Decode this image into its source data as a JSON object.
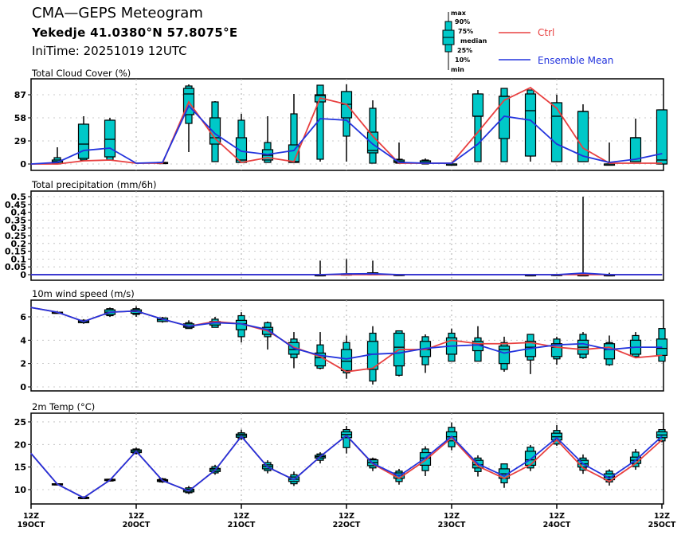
{
  "header": {
    "title": "CMA—GEPS Meteogram",
    "location": "Yekedje 41.0380°N 57.8075°E",
    "initime": "IniTime: 20251019 12UTC"
  },
  "legend": {
    "box_labels": [
      "max",
      "90%",
      "75%",
      "median",
      "25%",
      "10%",
      "min"
    ],
    "ctrl_label": "Ctrl",
    "mean_label": "Ensemble Mean",
    "ctrl_color": "#e84040",
    "mean_color": "#2233dd",
    "box_color": "#00c8c8"
  },
  "chart_data": [
    {
      "type": "boxplot-line",
      "title": "Total Cloud Cover (%)",
      "ylim": [
        -3,
        106
      ],
      "yticks": [
        0,
        29,
        58,
        87
      ],
      "ytick_labels": [
        "0",
        "29",
        "58",
        "87"
      ],
      "ctrl": [
        0,
        0,
        4,
        5,
        1,
        1,
        78,
        32,
        2,
        8,
        3,
        83,
        75,
        35,
        1,
        1,
        1,
        40,
        80,
        96,
        70,
        20,
        1,
        1,
        1
      ],
      "mean": [
        0,
        2,
        17,
        20,
        1,
        2,
        73,
        38,
        16,
        12,
        17,
        57,
        55,
        25,
        2,
        1,
        1,
        25,
        60,
        55,
        25,
        10,
        2,
        6,
        13
      ],
      "boxes": [
        null,
        [
          0,
          0,
          1,
          3,
          5,
          8,
          21
        ],
        [
          4,
          5,
          7,
          25,
          50,
          50,
          60
        ],
        [
          5,
          5,
          9,
          31,
          55,
          55,
          58
        ],
        null,
        [
          1,
          1,
          1,
          1,
          2,
          2,
          2
        ],
        [
          15,
          51,
          62,
          88,
          95,
          98,
          100
        ],
        [
          3,
          3,
          25,
          33,
          58,
          78,
          79
        ],
        [
          2,
          2,
          2,
          5,
          33,
          55,
          63
        ],
        [
          2,
          2,
          5,
          11,
          18,
          27,
          60
        ],
        [
          2,
          2,
          2,
          3,
          24,
          63,
          88
        ],
        [
          3,
          6,
          78,
          86,
          87,
          99,
          99
        ],
        [
          3,
          35,
          58,
          75,
          91,
          91,
          100
        ],
        [
          1,
          1,
          14,
          17,
          40,
          70,
          80
        ],
        [
          0,
          1,
          2,
          3,
          5,
          6,
          27
        ],
        [
          0,
          0,
          1,
          2,
          4,
          5,
          7
        ],
        [
          0,
          0,
          0,
          0,
          0,
          0,
          0
        ],
        [
          3,
          3,
          60,
          60,
          88,
          88,
          93
        ],
        [
          3,
          3,
          32,
          85,
          85,
          95,
          95
        ],
        [
          3,
          10,
          10,
          67,
          88,
          93,
          93
        ],
        [
          3,
          3,
          3,
          60,
          77,
          77,
          87
        ],
        [
          3,
          3,
          3,
          66,
          66,
          66,
          75
        ],
        [
          0,
          0,
          0,
          0,
          0,
          0,
          27
        ],
        [
          3,
          3,
          3,
          33,
          33,
          33,
          57
        ],
        [
          0,
          0,
          0,
          5,
          68,
          68,
          68
        ]
      ]
    },
    {
      "type": "boxplot-line",
      "title": "Total precipitation (mm/6h)",
      "ylim": [
        -0.02,
        0.52
      ],
      "yticks": [
        0,
        0.05,
        0.1,
        0.15,
        0.2,
        0.25,
        0.3,
        0.35,
        0.4,
        0.45,
        0.5
      ],
      "ytick_labels": [
        "0",
        "0.05",
        "0.1",
        "0.15",
        "0.2",
        "0.25",
        "0.3",
        "0.35",
        "0.4",
        "0.45",
        "0.5"
      ],
      "ctrl": [
        0,
        0,
        0,
        0,
        0,
        0,
        0,
        0,
        0,
        0,
        0,
        0,
        0,
        0,
        0,
        0,
        0,
        0,
        0,
        0,
        0,
        0,
        0,
        0,
        0
      ],
      "mean": [
        0,
        0,
        0,
        0,
        0,
        0,
        0,
        0,
        0,
        0,
        0,
        0,
        0.005,
        0.006,
        0,
        0,
        0,
        0,
        0,
        0,
        0,
        0.01,
        0,
        0,
        0
      ],
      "boxes": [
        null,
        null,
        null,
        null,
        null,
        null,
        null,
        null,
        null,
        null,
        null,
        [
          0,
          0,
          0,
          0,
          0,
          0,
          0.09
        ],
        [
          0,
          0,
          0,
          0,
          0.005,
          0.005,
          0.1
        ],
        [
          0,
          0,
          0,
          0,
          0.012,
          0.012,
          0.09
        ],
        [
          0,
          0,
          0,
          0,
          0.002,
          0.002,
          0.002
        ],
        null,
        null,
        null,
        null,
        [
          0,
          0,
          0,
          0,
          0,
          0,
          0.004
        ],
        [
          0,
          0,
          0,
          0,
          0.002,
          0.002,
          0.002
        ],
        [
          0,
          0,
          0,
          0,
          0,
          0,
          0.5
        ],
        [
          0,
          0,
          0,
          0,
          0,
          0,
          0.012
        ],
        null,
        null
      ]
    },
    {
      "type": "boxplot-line",
      "title": "10m wind speed (m/s)",
      "ylim": [
        -0.3,
        7.3
      ],
      "yticks": [
        0,
        2,
        4,
        6
      ],
      "ytick_labels": [
        "0",
        "2",
        "4",
        "6"
      ],
      "ctrl": [
        6.8,
        6.4,
        5.6,
        6.4,
        6.5,
        5.8,
        5.2,
        5.6,
        5.4,
        4.8,
        3.4,
        2.6,
        1.3,
        1.6,
        3.2,
        3.2,
        4.0,
        3.7,
        3.7,
        3.8,
        3.4,
        3.2,
        3.4,
        2.5,
        2.7
      ],
      "mean": [
        6.8,
        6.4,
        5.6,
        6.4,
        6.5,
        5.8,
        5.2,
        5.5,
        5.4,
        4.9,
        3.3,
        2.7,
        2.4,
        2.8,
        2.9,
        3.3,
        3.5,
        3.6,
        2.9,
        3.3,
        3.6,
        3.7,
        3.2,
        3.4,
        3.4
      ],
      "boxes": [
        null,
        [
          6.3,
          6.3,
          6.3,
          6.35,
          6.4,
          6.4,
          6.5
        ],
        [
          5.4,
          5.5,
          5.5,
          5.6,
          5.7,
          5.7,
          5.8
        ],
        [
          6.0,
          6.1,
          6.2,
          6.4,
          6.6,
          6.7,
          6.8
        ],
        [
          6.0,
          6.2,
          6.3,
          6.45,
          6.6,
          6.7,
          6.9
        ],
        [
          5.5,
          5.6,
          5.6,
          5.75,
          5.9,
          5.9,
          6.0
        ],
        [
          5.0,
          5.0,
          5.1,
          5.2,
          5.4,
          5.5,
          5.7
        ],
        [
          5.1,
          5.1,
          5.3,
          5.5,
          5.6,
          5.8,
          6.0
        ],
        [
          3.8,
          4.3,
          4.9,
          5.4,
          5.7,
          6.1,
          6.4
        ],
        [
          3.2,
          4.3,
          4.5,
          4.9,
          5.1,
          5.5,
          5.6
        ],
        [
          1.6,
          2.5,
          2.8,
          3.2,
          3.8,
          4.1,
          4.7
        ],
        [
          1.5,
          1.6,
          1.8,
          2.5,
          2.9,
          3.6,
          4.7
        ],
        [
          0.7,
          1.2,
          1.4,
          2.2,
          3.2,
          3.8,
          4.4
        ],
        [
          0.2,
          0.5,
          1.5,
          2.8,
          3.9,
          4.6,
          5.2
        ],
        [
          0.9,
          1.0,
          1.8,
          3.4,
          4.6,
          4.8,
          4.8
        ],
        [
          1.2,
          1.9,
          2.6,
          3.2,
          3.9,
          4.3,
          4.5
        ],
        [
          2.2,
          2.2,
          2.8,
          3.5,
          4.2,
          4.6,
          5.0
        ],
        [
          2.2,
          2.2,
          3.1,
          3.6,
          3.9,
          4.2,
          5.2
        ],
        [
          1.3,
          1.5,
          2.0,
          3.2,
          3.5,
          3.8,
          4.3
        ],
        [
          1.1,
          2.3,
          2.6,
          3.4,
          3.9,
          4.5,
          4.5
        ],
        [
          1.9,
          2.4,
          2.6,
          3.4,
          3.7,
          4.1,
          4.3
        ],
        [
          2.4,
          2.5,
          2.8,
          3.4,
          4.0,
          4.5,
          4.7
        ],
        [
          1.8,
          1.9,
          2.4,
          3.2,
          3.7,
          3.8,
          4.4
        ],
        [
          2.5,
          2.6,
          2.8,
          3.4,
          4.0,
          4.4,
          4.7
        ],
        [
          2.2,
          2.2,
          2.7,
          3.3,
          4.1,
          5.0,
          5.0
        ]
      ]
    },
    {
      "type": "boxplot-line",
      "title": "2m Temp (°C)",
      "ylim": [
        6.3,
        27
      ],
      "yticks": [
        10,
        15,
        20,
        25
      ],
      "ytick_labels": [
        "10",
        "15",
        "20",
        "25"
      ],
      "ctrl": [
        18,
        11.2,
        8.2,
        12.1,
        18.5,
        12,
        9.7,
        14.3,
        21.8,
        15,
        12.2,
        17.3,
        22,
        15.7,
        12.5,
        16.5,
        21.5,
        15.2,
        12.5,
        15.5,
        21,
        14.8,
        11.8,
        15.8,
        21
      ],
      "mean": [
        18,
        11.2,
        8.2,
        12.1,
        18.5,
        12,
        9.7,
        14.3,
        21.8,
        15,
        12.2,
        17.3,
        22,
        15.8,
        13,
        17,
        21.8,
        15.7,
        13,
        16.7,
        21.5,
        15.7,
        12.5,
        16.5,
        21.8
      ],
      "boxes": [
        null,
        [
          11.1,
          11.1,
          11.1,
          11.2,
          11.3,
          11.3,
          11.3
        ],
        [
          8.0,
          8.0,
          8.1,
          8.2,
          8.3,
          8.4,
          8.4
        ],
        [
          11.8,
          11.9,
          12,
          12.1,
          12.3,
          12.3,
          12.4
        ],
        [
          17.8,
          18,
          18.2,
          18.5,
          18.8,
          19,
          19.3
        ],
        [
          11.5,
          11.7,
          11.8,
          12,
          12.2,
          12.4,
          12.6
        ],
        [
          9.0,
          9.3,
          9.5,
          9.8,
          10.1,
          10.4,
          10.8
        ],
        [
          13.3,
          13.7,
          14,
          14.4,
          14.7,
          15.1,
          15.5
        ],
        [
          21,
          21.3,
          21.6,
          22,
          22.3,
          22.6,
          23.3
        ],
        [
          13.6,
          14.2,
          14.6,
          15.1,
          15.5,
          16,
          16.5
        ],
        [
          10.8,
          11.3,
          11.8,
          12.3,
          12.8,
          13.3,
          14
        ],
        [
          15.8,
          16.5,
          17,
          17.3,
          17.6,
          17.9,
          18.3
        ],
        [
          18,
          19.3,
          21.5,
          22.2,
          22.8,
          23.3,
          24.1
        ],
        [
          14.1,
          14.8,
          15.3,
          16,
          16.6,
          16.8,
          17.1
        ],
        [
          11.1,
          11.8,
          12.5,
          13.2,
          13.7,
          14.1,
          14.6
        ],
        [
          13,
          14.2,
          15.4,
          17,
          18.2,
          19,
          19.6
        ],
        [
          18.7,
          19.5,
          20.8,
          21.7,
          22.8,
          23.8,
          24.9
        ],
        [
          12.9,
          14,
          14.8,
          15.5,
          16.5,
          17,
          17.6
        ],
        [
          10.4,
          11.5,
          12.5,
          13.5,
          14.6,
          15.7,
          15.7
        ],
        [
          14.1,
          14.8,
          15.4,
          16.6,
          18.5,
          19.4,
          19.9
        ],
        [
          19.7,
          20.1,
          21,
          21.7,
          22.5,
          23.1,
          24.3
        ],
        [
          13.5,
          14.3,
          15,
          15.7,
          16.5,
          17,
          17.8
        ],
        [
          10.9,
          11.7,
          12.2,
          12.8,
          13.5,
          14.1,
          14.5
        ],
        [
          14.4,
          15.1,
          15.8,
          16.5,
          17.2,
          18.3,
          19
        ],
        [
          20.5,
          20.8,
          21.5,
          22.1,
          22.8,
          23.3,
          23.3
        ]
      ]
    }
  ],
  "xaxis": {
    "tick_steps": [
      0,
      4,
      8,
      12,
      16,
      20,
      24
    ],
    "tick_labels_top": [
      "12Z",
      "12Z",
      "12Z",
      "12Z",
      "12Z",
      "12Z",
      "12Z"
    ],
    "tick_labels_bottom": [
      "19OCT",
      "20OCT",
      "21OCT",
      "22OCT",
      "23OCT",
      "24OCT",
      "25OCT"
    ]
  }
}
